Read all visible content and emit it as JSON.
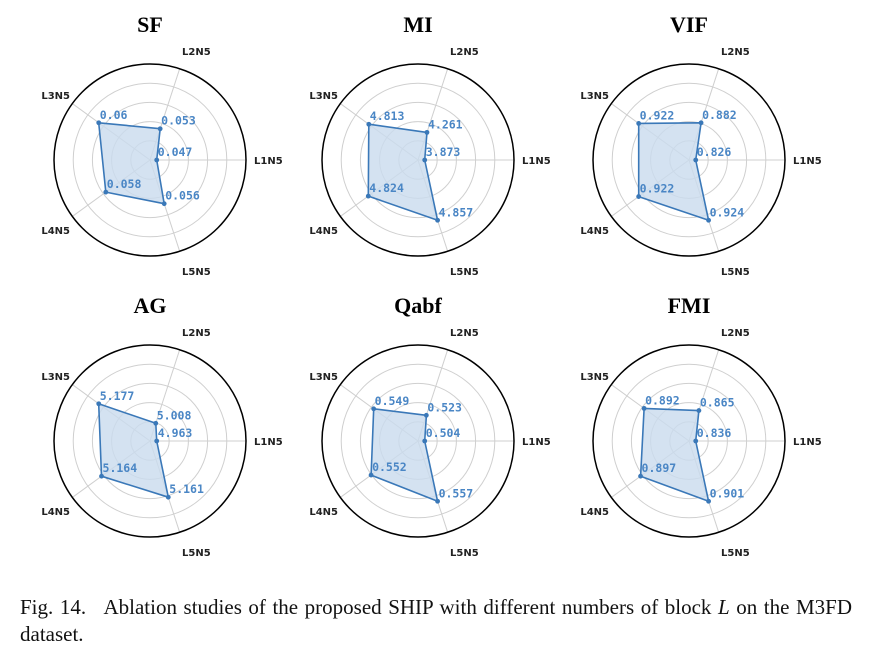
{
  "chart_data": [
    {
      "type": "radar",
      "title": "SF",
      "axes": [
        "L1N5",
        "L2N5",
        "L3N5",
        "L4N5",
        "L5N5"
      ],
      "values": [
        0.047,
        0.053,
        0.06,
        0.058,
        0.056
      ],
      "labels": [
        "0.047",
        "0.053",
        "0.06",
        "0.058",
        "0.056"
      ]
    },
    {
      "type": "radar",
      "title": "MI",
      "axes": [
        "L1N5",
        "L2N5",
        "L3N5",
        "L4N5",
        "L5N5"
      ],
      "values": [
        3.873,
        4.261,
        4.813,
        4.824,
        4.857
      ],
      "labels": [
        "3.873",
        "4.261",
        "4.813",
        "4.824",
        "4.857"
      ]
    },
    {
      "type": "radar",
      "title": "VIF",
      "axes": [
        "L1N5",
        "L2N5",
        "L3N5",
        "L4N5",
        "L5N5"
      ],
      "values": [
        0.826,
        0.882,
        0.922,
        0.922,
        0.924
      ],
      "labels": [
        "0.826",
        "0.882",
        "0.922",
        "0.922",
        "0.924"
      ]
    },
    {
      "type": "radar",
      "title": "AG",
      "axes": [
        "L1N5",
        "L2N5",
        "L3N5",
        "L4N5",
        "L5N5"
      ],
      "values": [
        4.963,
        5.008,
        5.177,
        5.164,
        5.161
      ],
      "labels": [
        "4.963",
        "5.008",
        "5.177",
        "5.164",
        "5.161"
      ]
    },
    {
      "type": "radar",
      "title": "Qabf",
      "axes": [
        "L1N5",
        "L2N5",
        "L3N5",
        "L4N5",
        "L5N5"
      ],
      "values": [
        0.504,
        0.523,
        0.549,
        0.552,
        0.557
      ],
      "labels": [
        "0.504",
        "0.523",
        "0.549",
        "0.552",
        "0.557"
      ]
    },
    {
      "type": "radar",
      "title": "FMI",
      "axes": [
        "L1N5",
        "L2N5",
        "L3N5",
        "L4N5",
        "L5N5"
      ],
      "values": [
        0.836,
        0.865,
        0.892,
        0.897,
        0.901
      ],
      "labels": [
        "0.836",
        "0.865",
        "0.892",
        "0.897",
        "0.901"
      ]
    }
  ],
  "colors": {
    "series": "#3a78b8",
    "fill": "#c9dbee",
    "grid": "#cfcfcf",
    "labels": "#4a86c5"
  },
  "caption": {
    "label": "Fig. 14.",
    "text": "Ablation studies of the proposed SHIP with different numbers of block ",
    "variable": "L",
    "suffix": " on the M3FD dataset."
  }
}
